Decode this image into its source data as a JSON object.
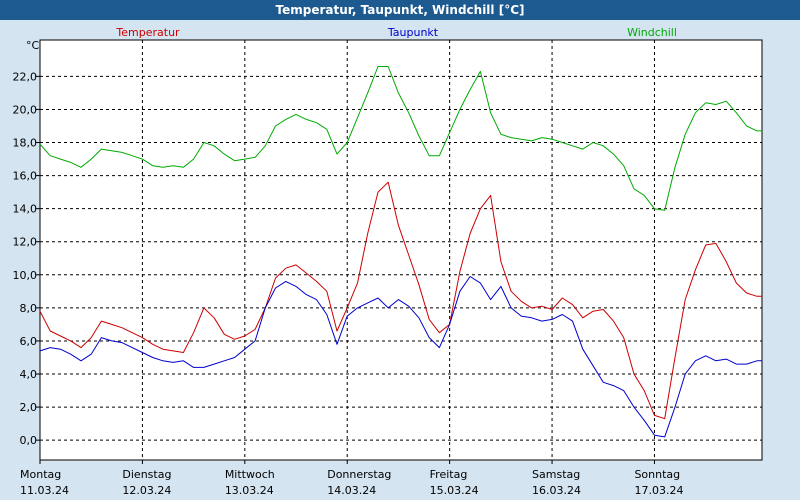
{
  "window": {
    "title": "Temperatur, Taupunkt, Windchill [°C]"
  },
  "chart_data": {
    "type": "line",
    "title": "Temperatur, Taupunkt, Windchill [°C]",
    "ylabel": "°C",
    "ylim": [
      -1.2,
      24.2
    ],
    "yticks": [
      0,
      2,
      4,
      6,
      8,
      10,
      12,
      14,
      16,
      18,
      20,
      22
    ],
    "ytick_labels": [
      "0,0",
      "2,0",
      "4,0",
      "6,0",
      "8,0",
      "10,0",
      "12,0",
      "14,0",
      "16,0",
      "18,0",
      "20,0",
      "22,0"
    ],
    "xlim": [
      0,
      7.05
    ],
    "grid": true,
    "days": [
      {
        "name": "Montag",
        "date": "11.03.24"
      },
      {
        "name": "Dienstag",
        "date": "12.03.24"
      },
      {
        "name": "Mittwoch",
        "date": "13.03.24"
      },
      {
        "name": "Donnerstag",
        "date": "14.03.24"
      },
      {
        "name": "Freitag",
        "date": "15.03.24"
      },
      {
        "name": "Samstag",
        "date": "16.03.24"
      },
      {
        "name": "Sonntag",
        "date": "17.03.24"
      }
    ],
    "x": [
      0,
      0.1,
      0.2,
      0.3,
      0.4,
      0.5,
      0.6,
      0.7,
      0.8,
      0.9,
      1.0,
      1.1,
      1.2,
      1.3,
      1.4,
      1.5,
      1.6,
      1.7,
      1.8,
      1.9,
      2.0,
      2.1,
      2.2,
      2.3,
      2.4,
      2.5,
      2.6,
      2.7,
      2.8,
      2.9,
      3.0,
      3.1,
      3.2,
      3.3,
      3.4,
      3.5,
      3.6,
      3.7,
      3.8,
      3.9,
      4.0,
      4.1,
      4.2,
      4.3,
      4.4,
      4.5,
      4.6,
      4.7,
      4.8,
      4.9,
      5.0,
      5.1,
      5.2,
      5.3,
      5.4,
      5.5,
      5.6,
      5.7,
      5.8,
      5.9,
      6.0,
      6.1,
      6.2,
      6.3,
      6.4,
      6.5,
      6.6,
      6.7,
      6.8,
      6.9,
      7.0,
      7.05
    ],
    "series": [
      {
        "name": "Temperatur",
        "color": "#cc0000",
        "values": [
          7.8,
          6.6,
          6.3,
          6.0,
          5.6,
          6.2,
          7.2,
          7.0,
          6.8,
          6.5,
          6.2,
          5.8,
          5.5,
          5.4,
          5.3,
          6.5,
          8.0,
          7.4,
          6.4,
          6.1,
          6.3,
          6.7,
          8.0,
          9.8,
          10.4,
          10.6,
          10.1,
          9.6,
          9.0,
          6.6,
          8.0,
          9.5,
          12.5,
          15.0,
          15.6,
          13.0,
          11.2,
          9.4,
          7.3,
          6.5,
          7.0,
          10.2,
          12.5,
          14.0,
          14.8,
          10.8,
          9.0,
          8.4,
          8.0,
          8.1,
          7.9,
          8.6,
          8.2,
          7.4,
          7.8,
          7.9,
          7.2,
          6.2,
          4.0,
          3.0,
          1.5,
          1.3,
          5.0,
          8.5,
          10.3,
          11.8,
          11.9,
          10.8,
          9.5,
          8.9,
          8.7,
          8.7
        ]
      },
      {
        "name": "Taupunkt",
        "color": "#0000cc",
        "values": [
          5.4,
          5.6,
          5.5,
          5.2,
          4.8,
          5.2,
          6.2,
          6.0,
          5.9,
          5.6,
          5.3,
          5.0,
          4.8,
          4.7,
          4.8,
          4.4,
          4.4,
          4.6,
          4.8,
          5.0,
          5.5,
          6.0,
          8.0,
          9.2,
          9.6,
          9.3,
          8.8,
          8.5,
          7.6,
          5.8,
          7.5,
          8.0,
          8.3,
          8.6,
          8.0,
          8.5,
          8.1,
          7.4,
          6.2,
          5.6,
          7.0,
          9.0,
          9.9,
          9.5,
          8.5,
          9.3,
          8.0,
          7.5,
          7.4,
          7.2,
          7.3,
          7.6,
          7.2,
          5.5,
          4.5,
          3.5,
          3.3,
          3.0,
          2.0,
          1.2,
          0.3,
          0.2,
          2.0,
          4.0,
          4.8,
          5.1,
          4.8,
          4.9,
          4.6,
          4.6,
          4.8,
          4.8
        ]
      },
      {
        "name": "Windchill",
        "color": "#00aa00",
        "values": [
          17.9,
          17.2,
          17.0,
          16.8,
          16.5,
          17.0,
          17.6,
          17.5,
          17.4,
          17.2,
          17.0,
          16.6,
          16.5,
          16.6,
          16.5,
          17.0,
          18.0,
          17.8,
          17.3,
          16.9,
          17.0,
          17.1,
          17.8,
          19.0,
          19.4,
          19.7,
          19.4,
          19.2,
          18.8,
          17.3,
          18.0,
          19.5,
          21.0,
          22.6,
          22.6,
          21.0,
          19.8,
          18.4,
          17.2,
          17.2,
          18.6,
          20.0,
          21.2,
          22.3,
          19.8,
          18.5,
          18.3,
          18.2,
          18.1,
          18.3,
          18.2,
          18.0,
          17.8,
          17.6,
          18.0,
          17.8,
          17.3,
          16.6,
          15.2,
          14.8,
          14.0,
          13.9,
          16.5,
          18.5,
          19.8,
          20.4,
          20.3,
          20.5,
          19.8,
          19.0,
          18.7,
          18.7
        ]
      }
    ]
  }
}
